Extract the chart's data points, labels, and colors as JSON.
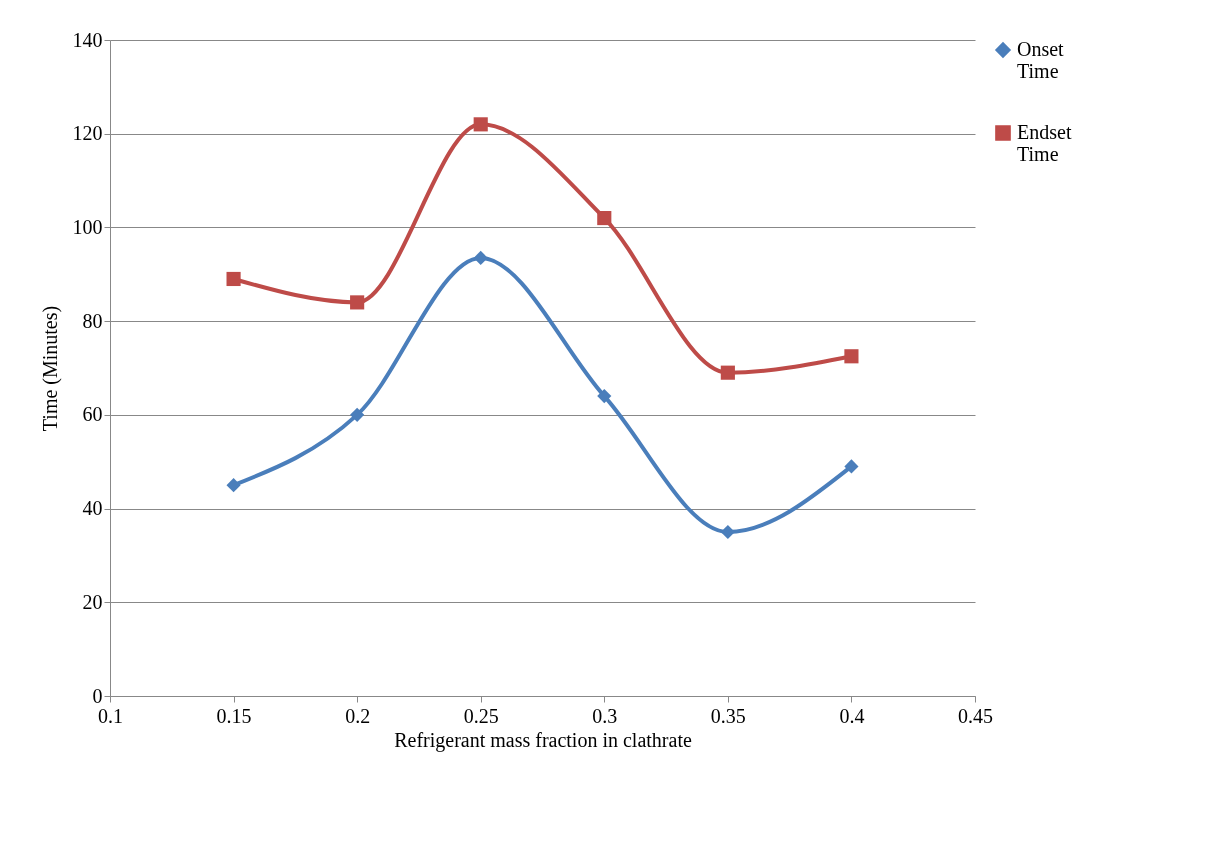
{
  "chart_data": {
    "type": "line",
    "xlabel": "Refrigerant mass fraction in clathrate",
    "ylabel": "Time  (Minutes)",
    "x": [
      0.15,
      0.2,
      0.25,
      0.3,
      0.35,
      0.4
    ],
    "series": [
      {
        "name": "Onset Time",
        "color": "#4a7ebb",
        "marker": "diamond",
        "values": [
          45,
          60,
          93.5,
          64,
          35,
          49
        ]
      },
      {
        "name": "Endset Time",
        "color": "#be4b48",
        "marker": "square",
        "values": [
          89,
          84,
          122,
          102,
          69,
          72.5
        ]
      }
    ],
    "xlim": [
      0.1,
      0.45
    ],
    "xticks": [
      0.1,
      0.15,
      0.2,
      0.25,
      0.3,
      0.35,
      0.4,
      0.45
    ],
    "ylim": [
      0,
      140
    ],
    "yticks": [
      0,
      20,
      40,
      60,
      80,
      100,
      120,
      140
    ],
    "grid": "y",
    "legend": "right",
    "line_style": "solid"
  }
}
